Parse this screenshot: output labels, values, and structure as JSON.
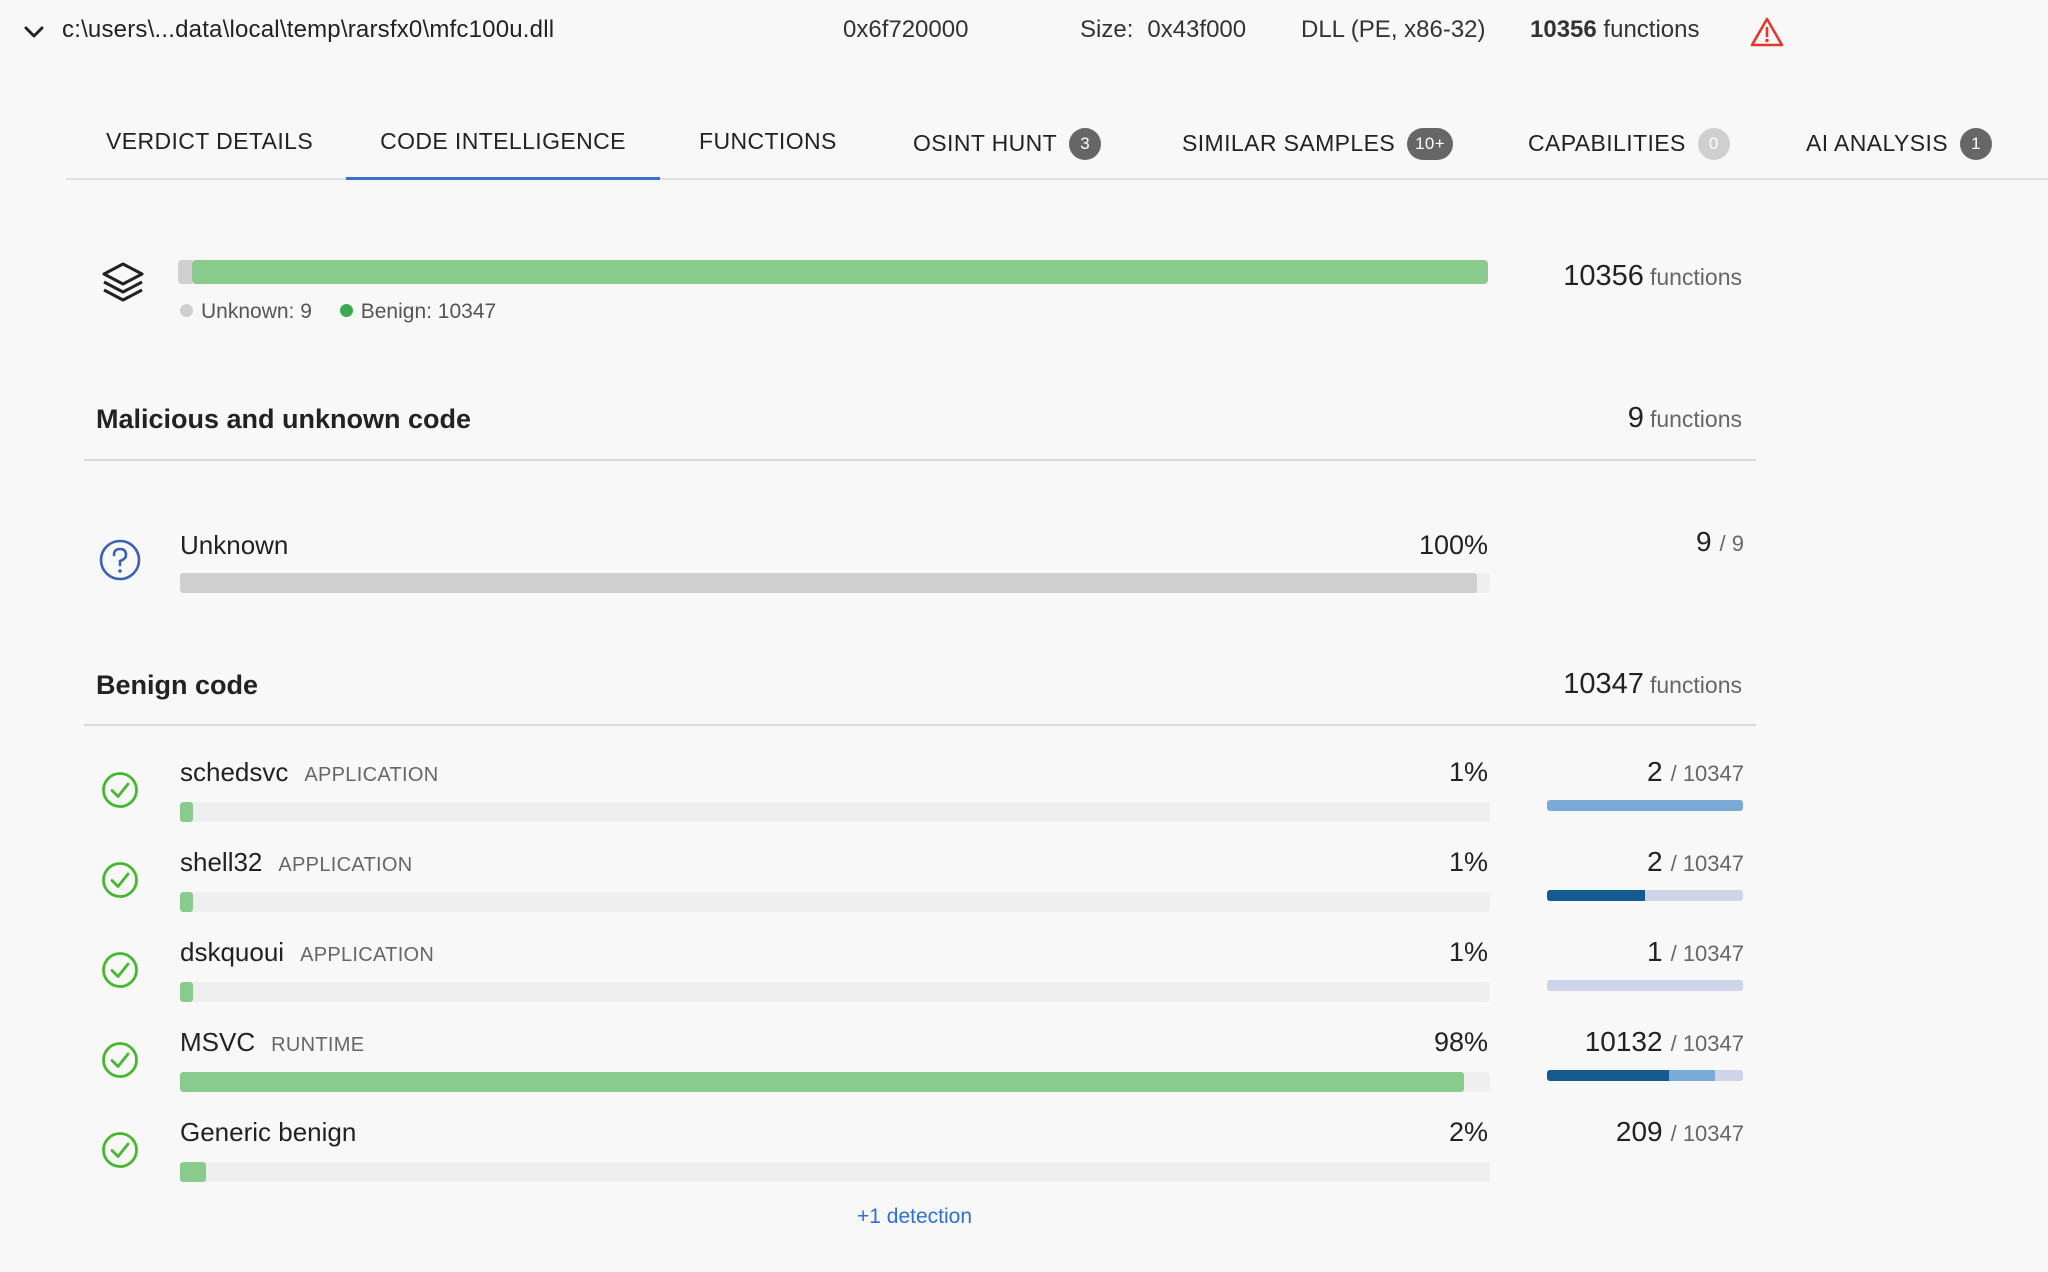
{
  "header": {
    "file_path": "c:\\users\\...data\\local\\temp\\rarsfx0\\mfc100u.dll",
    "base_address": "0x6f720000",
    "size_label": "Size:",
    "size_value": "0x43f000",
    "file_type": "DLL (PE, x86-32)",
    "function_count": "10356",
    "function_word": "functions",
    "warning_icon": "warning-triangle-icon",
    "warning_color": "#e0392b"
  },
  "tabs": [
    {
      "label": "VERDICT DETAILS",
      "active": false
    },
    {
      "label": "CODE INTELLIGENCE",
      "active": true
    },
    {
      "label": "FUNCTIONS",
      "active": false
    },
    {
      "label": "OSINT HUNT",
      "badge": "3",
      "active": false
    },
    {
      "label": "SIMILAR SAMPLES",
      "badge": "10+",
      "active": false
    },
    {
      "label": "CAPABILITIES",
      "badge": "0",
      "active": false
    },
    {
      "label": "AI ANALYSIS",
      "badge": "1",
      "active": false
    }
  ],
  "summary": {
    "total": "10356",
    "unit": "functions",
    "unknown_label": "Unknown: 9",
    "benign_label": "Benign: 10347",
    "unknown_share": 0.0009,
    "benign_share": 0.9991,
    "unknown_color": "#cfcfcf",
    "benign_color": "#3daa4f",
    "bar_green": "#88cb8c"
  },
  "malicious_section": {
    "title": "Malicious and unknown code",
    "count": "9",
    "unit": "functions",
    "rows": [
      {
        "name": "Unknown",
        "category": "",
        "percent": "100%",
        "fill": 0.99,
        "count": "9",
        "of": "/ 9",
        "icon": "question-circle-icon"
      }
    ]
  },
  "benign_section": {
    "title": "Benign code",
    "count": "10347",
    "unit": "functions",
    "rows": [
      {
        "name": "schedsvc",
        "category": "APPLICATION",
        "percent": "1%",
        "fill": 0.01,
        "count": "2",
        "of": "/ 10347",
        "icon": "check-circle-icon"
      },
      {
        "name": "shell32",
        "category": "APPLICATION",
        "percent": "1%",
        "fill": 0.01,
        "count": "2",
        "of": "/ 10347",
        "icon": "check-circle-icon"
      },
      {
        "name": "dskquoui",
        "category": "APPLICATION",
        "percent": "1%",
        "fill": 0.01,
        "count": "1",
        "of": "/ 10347",
        "icon": "check-circle-icon"
      },
      {
        "name": "MSVC",
        "category": "RUNTIME",
        "percent": "98%",
        "fill": 0.98,
        "count": "10132",
        "of": "/ 10347",
        "icon": "check-circle-icon"
      },
      {
        "name": "Generic benign",
        "category": "",
        "percent": "2%",
        "fill": 0.02,
        "count": "209",
        "of": "/ 10347",
        "icon": "check-circle-icon"
      }
    ]
  },
  "more_link": "+1 detection"
}
